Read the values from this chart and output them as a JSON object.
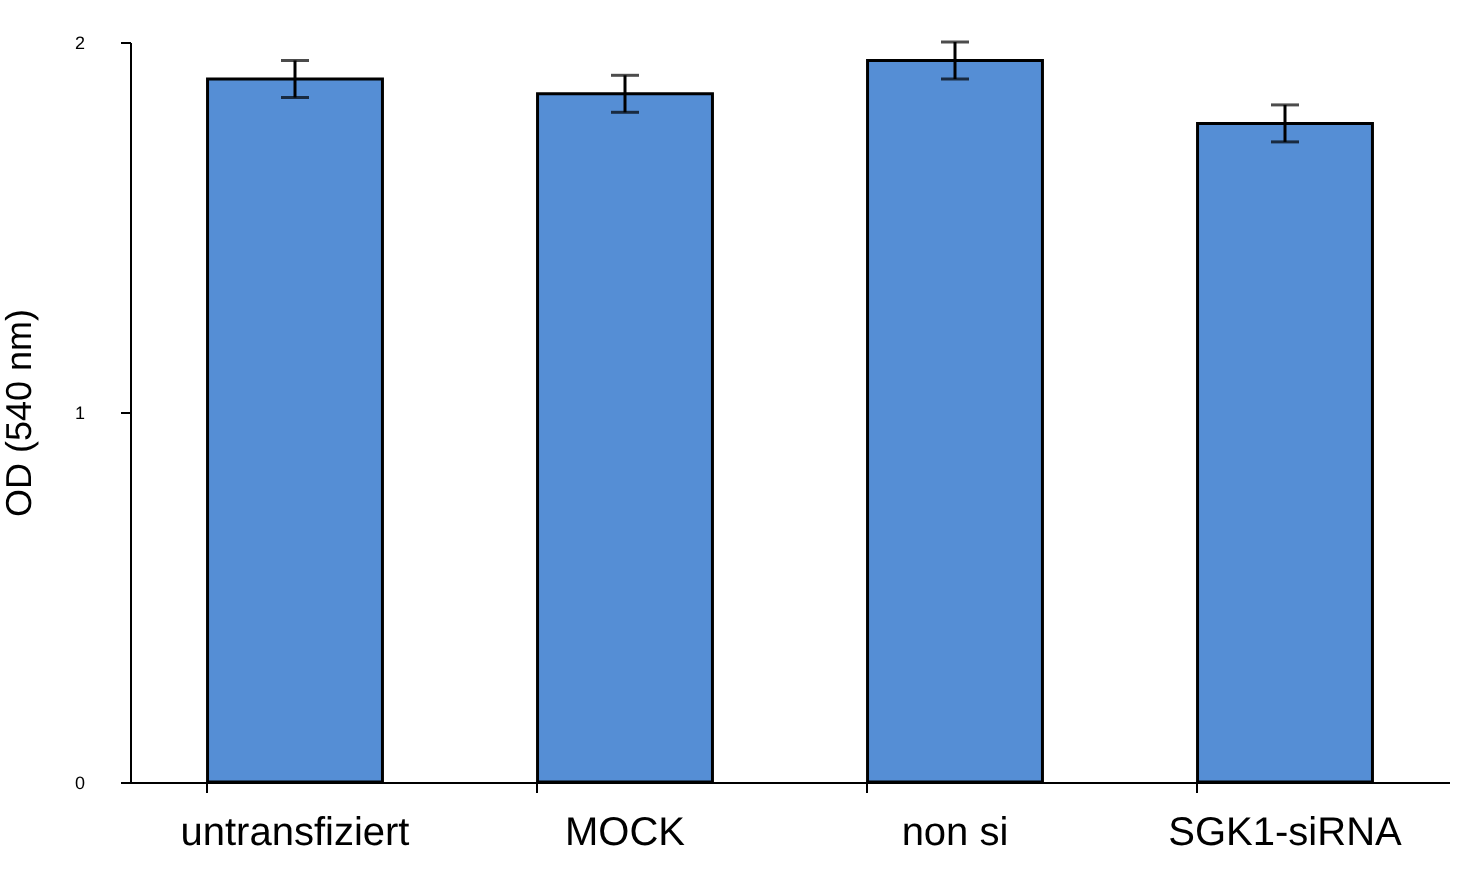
{
  "chart_data": {
    "type": "bar",
    "ylabel": "OD (540 nm)",
    "categories": [
      "untransfiziert",
      "MOCK",
      "non si",
      "SGK1-siRNA"
    ],
    "values": [
      1.9,
      1.86,
      1.95,
      1.78
    ],
    "errors": [
      0.05,
      0.05,
      0.05,
      0.05
    ],
    "color": "#558ed5",
    "ylim": [
      0,
      2
    ],
    "yticks": [
      0,
      1,
      2
    ],
    "grid": false
  }
}
